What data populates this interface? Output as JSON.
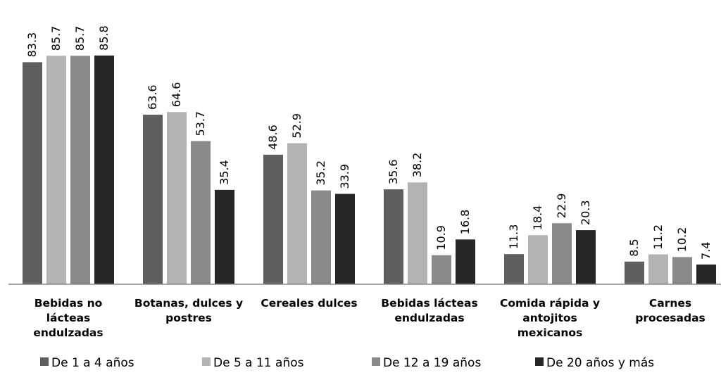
{
  "chart_data": {
    "type": "bar",
    "title": "",
    "xlabel": "",
    "ylabel": "",
    "ylim": [
      0,
      90
    ],
    "grid": false,
    "legend_position": "bottom",
    "categories": [
      [
        "Bebidas no",
        "lácteas",
        "endulzadas"
      ],
      [
        "Botanas, dulces y",
        "postres"
      ],
      [
        "Cereales dulces"
      ],
      [
        "Bebidas lácteas",
        "endulzadas"
      ],
      [
        "Comida rápida y",
        "antojitos",
        "mexicanos"
      ],
      [
        "Carnes",
        "procesadas"
      ]
    ],
    "series": [
      {
        "name": "De 1 a 4 años",
        "color": "#5f5f5f",
        "values": [
          83.3,
          63.6,
          48.6,
          35.6,
          11.3,
          8.5
        ],
        "labels": [
          "83.3",
          "63.6",
          "48.6",
          "35.6",
          "11.3",
          "8.5"
        ]
      },
      {
        "name": "De 5 a 11 años",
        "color": "#b3b3b3",
        "values": [
          85.7,
          64.6,
          52.9,
          38.2,
          18.4,
          11.2
        ],
        "labels": [
          "85.7",
          "64.6",
          "52.9",
          "38.2",
          "18.4",
          "11.2"
        ]
      },
      {
        "name": "De 12 a 19 años",
        "color": "#8a8a8a",
        "values": [
          85.7,
          53.7,
          35.2,
          10.9,
          22.9,
          10.2
        ],
        "labels": [
          "85.7",
          "53.7",
          "35.2",
          "10.9",
          "22.9",
          "10.2"
        ]
      },
      {
        "name": "De 20 años y más",
        "color": "#262626",
        "values": [
          85.8,
          35.4,
          33.9,
          16.8,
          20.3,
          7.4
        ],
        "labels": [
          "85.8",
          "35.4",
          "33.9",
          "16.8",
          "20.3",
          "7.4"
        ]
      }
    ]
  }
}
